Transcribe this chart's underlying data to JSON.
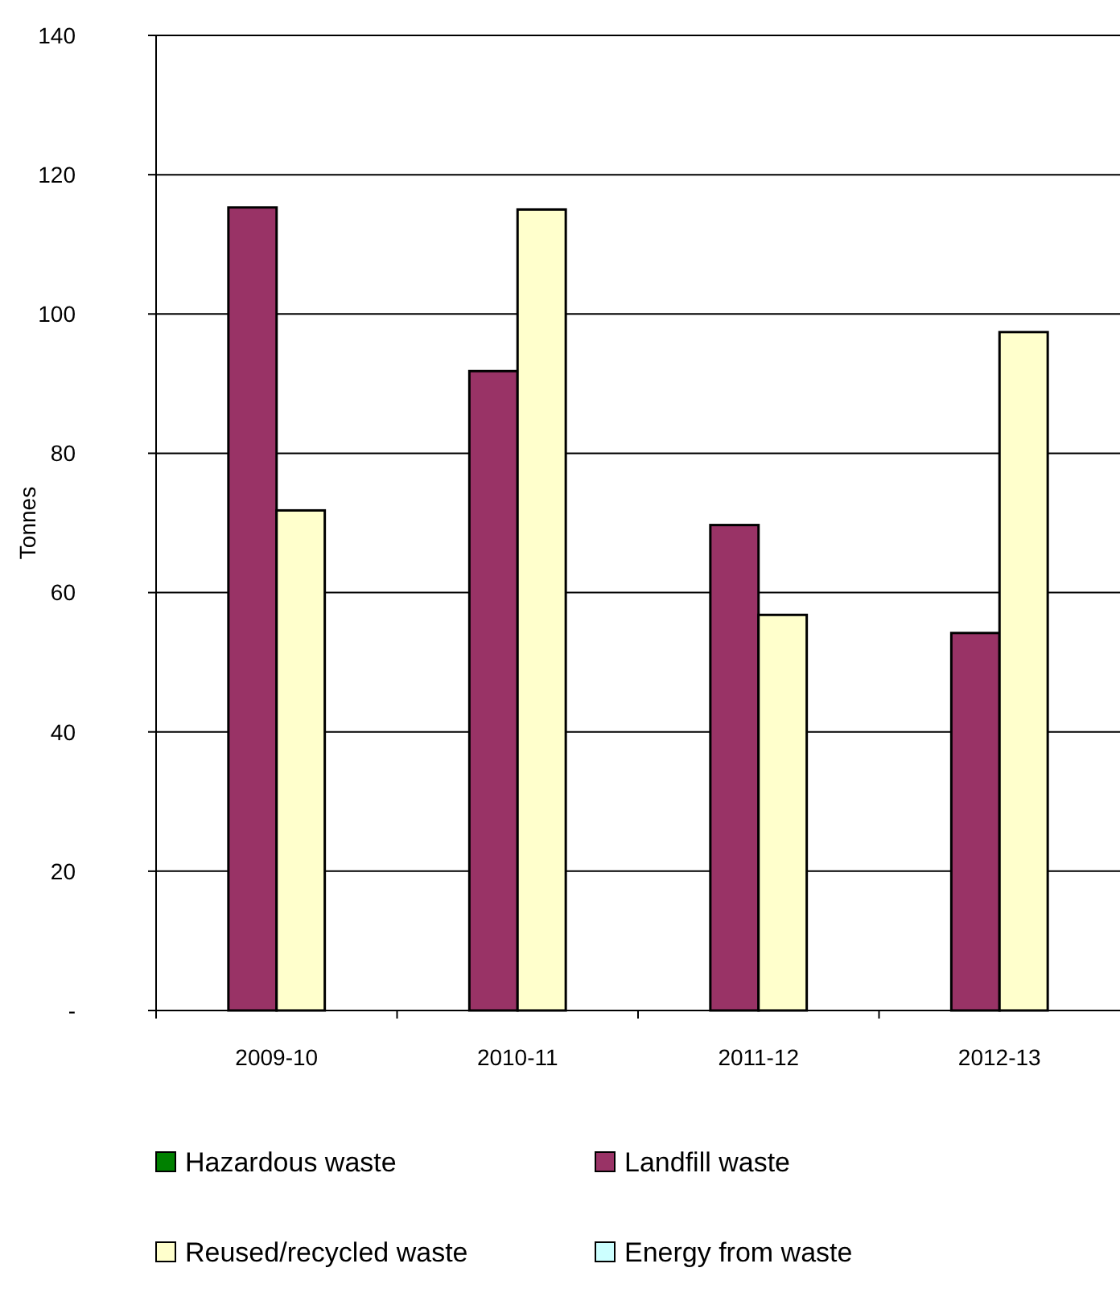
{
  "chart_data": {
    "type": "bar",
    "ylabel": "Tonnes",
    "categories": [
      "2009-10",
      "2010-11",
      "2011-12",
      "2012-13"
    ],
    "series": [
      {
        "name": "Hazardous waste",
        "color": "#008000",
        "values": [
          0,
          0,
          0,
          0
        ]
      },
      {
        "name": "Landfill waste",
        "color": "#993366",
        "values": [
          115.3,
          91.8,
          69.7,
          54.2
        ]
      },
      {
        "name": "Reused/recycled waste",
        "color": "#ffffcc",
        "values": [
          71.8,
          115,
          56.8,
          97.4
        ]
      },
      {
        "name": "Energy from waste",
        "color": "#ccffff",
        "values": [
          0,
          0,
          0,
          0
        ]
      }
    ],
    "ylim": [
      0,
      140
    ],
    "yticks": [
      {
        "value": 0,
        "label": "-"
      },
      20,
      40,
      60,
      80,
      100,
      120,
      140
    ],
    "grid": "y",
    "legend": "bottom"
  }
}
